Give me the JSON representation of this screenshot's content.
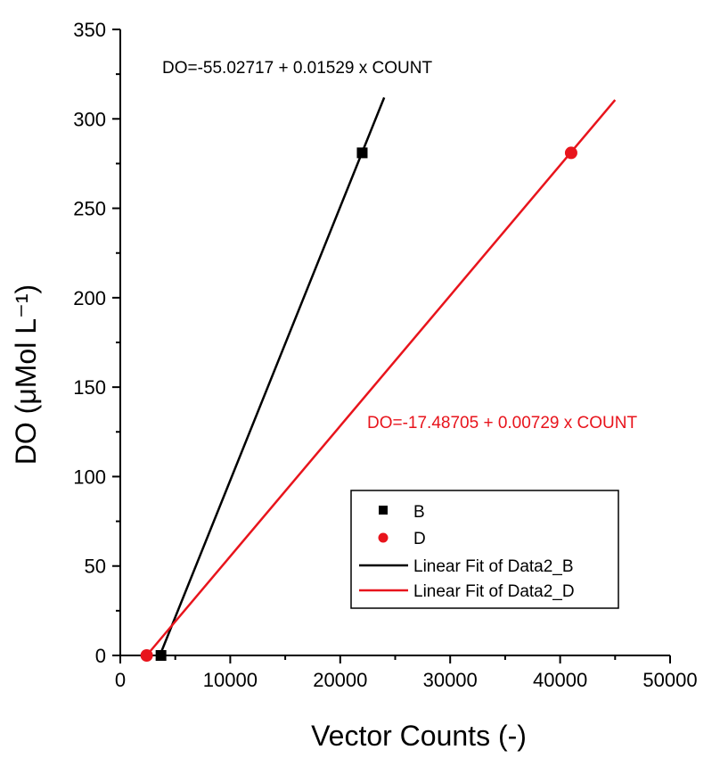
{
  "chart_data": {
    "type": "scatter",
    "xlabel": "Vector Counts (-)",
    "ylabel": "DO (μMol L⁻¹)",
    "xlim": [
      0,
      50000
    ],
    "ylim": [
      0,
      350
    ],
    "x_ticks": [
      0,
      10000,
      20000,
      30000,
      40000,
      50000
    ],
    "y_ticks": [
      0,
      50,
      100,
      150,
      200,
      250,
      300,
      350
    ],
    "grid": false,
    "legend_position": "bottom-right",
    "series": [
      {
        "name": "B",
        "marker": "square",
        "color": "#000000",
        "x": [
          3700,
          22000
        ],
        "y": [
          0,
          281
        ]
      },
      {
        "name": "D",
        "marker": "circle",
        "color": "#e8141c",
        "x": [
          2400,
          41000
        ],
        "y": [
          0,
          281
        ]
      }
    ],
    "fits": [
      {
        "name": "Linear Fit of Data2_B",
        "color": "#000000",
        "intercept": -55.02717,
        "slope": 0.01529,
        "x_range": [
          3599,
          24000
        ],
        "equation": "DO=-55.02717 + 0.01529 x COUNT"
      },
      {
        "name": "Linear Fit of Data2_D",
        "color": "#e8141c",
        "intercept": -17.48705,
        "slope": 0.00729,
        "x_range": [
          2399,
          45000
        ],
        "equation": "DO=-17.48705 + 0.00729 x COUNT"
      }
    ]
  }
}
